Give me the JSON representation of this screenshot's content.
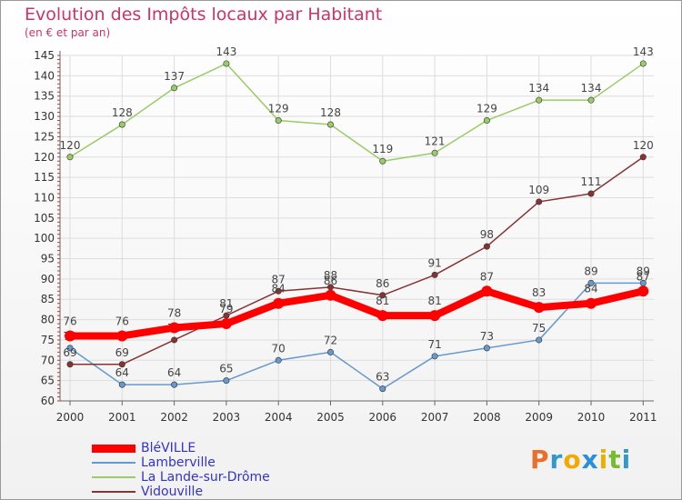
{
  "header": {
    "title": "Evolution des Impôts locaux par Habitant",
    "subtitle": "(en € et par an)"
  },
  "logo": {
    "text": "Proxiti",
    "colors": [
      "#e8702a",
      "#3399cc",
      "#f2a900",
      "#2d8fd5",
      "#e8b000",
      "#77bb33",
      "#3399cc"
    ]
  },
  "chart_data": {
    "type": "line",
    "x": [
      "2000",
      "2001",
      "2002",
      "2003",
      "2004",
      "2005",
      "2006",
      "2007",
      "2008",
      "2009",
      "2010",
      "2011"
    ],
    "ylim": [
      60,
      145
    ],
    "yticks": [
      60,
      65,
      70,
      75,
      80,
      85,
      90,
      95,
      100,
      105,
      110,
      115,
      120,
      125,
      130,
      135,
      140,
      145
    ],
    "grid": true,
    "legend_position": "bottom-left",
    "series": [
      {
        "name": "BléVILLE",
        "color": "#ff0000",
        "values": [
          76,
          76,
          78,
          79,
          84,
          86,
          81,
          81,
          87,
          83,
          84,
          87
        ],
        "bold": true
      },
      {
        "name": "Lamberville",
        "color": "#6699cc",
        "values": [
          73,
          64,
          64,
          65,
          70,
          72,
          63,
          71,
          73,
          75,
          89,
          89
        ]
      },
      {
        "name": "La Lande-sur-Drôme",
        "color": "#99cc66",
        "values": [
          120,
          128,
          137,
          143,
          129,
          128,
          119,
          121,
          129,
          134,
          134,
          143
        ]
      },
      {
        "name": "Vidouville",
        "color": "#883333",
        "values": [
          69,
          69,
          75,
          81,
          87,
          88,
          86,
          91,
          98,
          109,
          111,
          120
        ]
      }
    ]
  }
}
